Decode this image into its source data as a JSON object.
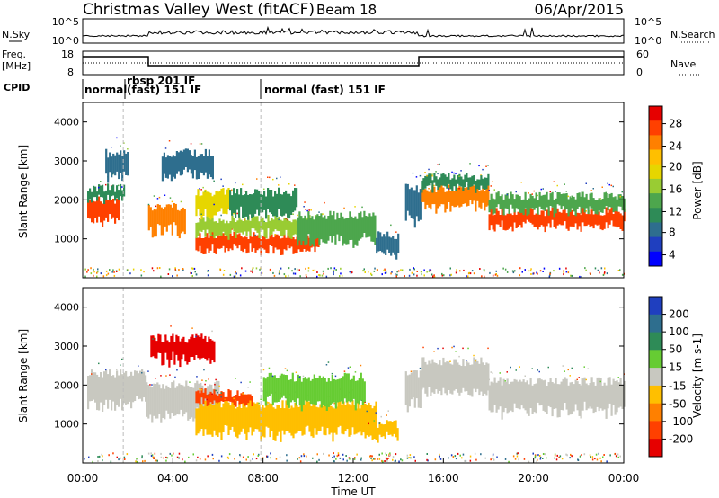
{
  "header": {
    "title": "Christmas Valley West (fitACF)",
    "beam": "Beam 18",
    "date": "06/Apr/2015"
  },
  "top_panels": {
    "nsky_label": "N.Sky",
    "nsky_ticks": [
      "10^5",
      "10^0"
    ],
    "nsearch_label": "N.Search",
    "nsearch_ticks": [
      "10^5",
      "10^0"
    ],
    "freq_label_1": "Freq.",
    "freq_label_2": "[MHz]",
    "freq_ticks": [
      "18",
      "8"
    ],
    "nave_label": "Nave",
    "nave_ticks": [
      "60",
      "0"
    ],
    "cpid_label": "CPID",
    "cpid_segments": [
      "normal",
      "rbsp 201 IF",
      "(fast) 151 IF",
      "normal (fast) 151 IF"
    ]
  },
  "x_axis": {
    "label": "Time UT",
    "ticks": [
      "00:00",
      "04:00",
      "08:00",
      "12:00",
      "16:00",
      "20:00",
      "00:00"
    ]
  },
  "colorbars": {
    "power": {
      "label": "Power [dB]",
      "ticks": [
        "28",
        "24",
        "20",
        "16",
        "12",
        "8",
        "4"
      ],
      "colors": [
        "#e60000",
        "#ff4000",
        "#ff8000",
        "#ffbf00",
        "#e6d600",
        "#99cc33",
        "#4da64d",
        "#2e8b57",
        "#2e6e8e",
        "#1f3fbf",
        "#0000ff"
      ]
    },
    "velocity": {
      "label": "Velocity [m s-1]",
      "ticks": [
        "200",
        "100",
        "50",
        "15",
        "-15",
        "-50",
        "-100",
        "-200"
      ],
      "colors": [
        "#1f3fbf",
        "#2e6e8e",
        "#2e8b57",
        "#66cc33",
        "#c8c8c0",
        "#ffbf00",
        "#ff8000",
        "#ff4000",
        "#e60000"
      ]
    }
  },
  "chart_data": [
    {
      "type": "heatmap",
      "title": "Power",
      "xlabel": "Time UT",
      "ylabel": "Slant Range [km]",
      "xlim": [
        0,
        24
      ],
      "ylim": [
        0,
        4500
      ],
      "yticks": [
        "4000",
        "3000",
        "2000",
        "1000"
      ],
      "colorbar_label": "Power [dB]",
      "colorbar_range": [
        0,
        30
      ],
      "bands": [
        {
          "t": [
            0.2,
            1.6
          ],
          "lo": 1450,
          "hi": 2000,
          "level": 26
        },
        {
          "t": [
            0.2,
            1.8
          ],
          "lo": 2000,
          "hi": 2300,
          "level": 10
        },
        {
          "t": [
            1.0,
            2.0
          ],
          "lo": 2600,
          "hi": 3200,
          "level": 6
        },
        {
          "t": [
            2.9,
            4.5
          ],
          "lo": 1150,
          "hi": 1800,
          "level": 22
        },
        {
          "t": [
            3.5,
            5.8
          ],
          "lo": 2600,
          "hi": 3200,
          "level": 6
        },
        {
          "t": [
            5.0,
            6.5
          ],
          "lo": 1550,
          "hi": 2200,
          "level": 18
        },
        {
          "t": [
            5.0,
            10.5
          ],
          "lo": 700,
          "hi": 1100,
          "level": 27
        },
        {
          "t": [
            5.0,
            10.5
          ],
          "lo": 1100,
          "hi": 1500,
          "level": 14
        },
        {
          "t": [
            6.5,
            9.5
          ],
          "lo": 1600,
          "hi": 2200,
          "level": 9
        },
        {
          "t": [
            9.5,
            13.0
          ],
          "lo": 900,
          "hi": 1600,
          "level": 12
        },
        {
          "t": [
            13.0,
            14.0
          ],
          "lo": 600,
          "hi": 1100,
          "level": 7
        },
        {
          "t": [
            14.3,
            15.0
          ],
          "lo": 1400,
          "hi": 2300,
          "level": 8
        },
        {
          "t": [
            15.0,
            18.0
          ],
          "lo": 1800,
          "hi": 2300,
          "level": 24
        },
        {
          "t": [
            15.0,
            18.0
          ],
          "lo": 2300,
          "hi": 2600,
          "level": 10
        },
        {
          "t": [
            18.0,
            24.0
          ],
          "lo": 1300,
          "hi": 1700,
          "level": 26
        },
        {
          "t": [
            18.0,
            24.0
          ],
          "lo": 1700,
          "hi": 2100,
          "level": 12
        }
      ]
    },
    {
      "type": "heatmap",
      "title": "Velocity",
      "xlabel": "Time UT",
      "ylabel": "Slant Range [km]",
      "xlim": [
        0,
        24
      ],
      "ylim": [
        0,
        4500
      ],
      "yticks": [
        "4000",
        "3000",
        "2000",
        "1000"
      ],
      "colorbar_label": "Velocity [m s-1]",
      "colorbar_range": [
        -200,
        200
      ],
      "bands": [
        {
          "t": [
            0.2,
            2.8
          ],
          "lo": 1450,
          "hi": 2300,
          "level": 0
        },
        {
          "t": [
            2.8,
            6.0
          ],
          "lo": 1150,
          "hi": 2000,
          "level": 0
        },
        {
          "t": [
            3.0,
            5.8
          ],
          "lo": 2600,
          "hi": 3200,
          "level": -200
        },
        {
          "t": [
            5.0,
            7.5
          ],
          "lo": 1500,
          "hi": 1800,
          "level": -120
        },
        {
          "t": [
            5.0,
            13.0
          ],
          "lo": 700,
          "hi": 1500,
          "level": -40
        },
        {
          "t": [
            8.0,
            12.5
          ],
          "lo": 1500,
          "hi": 2200,
          "level": 30
        },
        {
          "t": [
            12.5,
            14.0
          ],
          "lo": 600,
          "hi": 1000,
          "level": -40
        },
        {
          "t": [
            14.3,
            15.0
          ],
          "lo": 1400,
          "hi": 2300,
          "level": 0
        },
        {
          "t": [
            15.0,
            18.0
          ],
          "lo": 1800,
          "hi": 2600,
          "level": 0
        },
        {
          "t": [
            18.0,
            24.0
          ],
          "lo": 1300,
          "hi": 2100,
          "level": 0
        }
      ]
    }
  ]
}
